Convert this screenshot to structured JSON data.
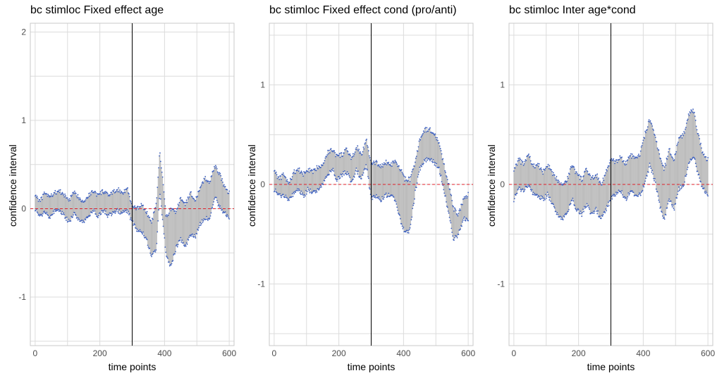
{
  "chart_data": [
    {
      "type": "line",
      "title": "bc stimloc Fixed effect age",
      "xlabel": "time points",
      "ylabel": "confidence interval",
      "xlim": [
        0,
        600
      ],
      "ylim": [
        -1.55,
        2.1
      ],
      "x_ticks": [
        0,
        200,
        400,
        600
      ],
      "y_ticks": [
        -1,
        0,
        1,
        2
      ],
      "grid": true,
      "reference_lines": {
        "vertical_x": 300,
        "horizontal_y": 0
      },
      "colors": {
        "interval": "#3b5fc0",
        "band": "#b4b4b4",
        "zero_line": "#e0202a",
        "vline": "#000000"
      },
      "series": [
        {
          "role": "upper",
          "x": [
            0,
            15,
            30,
            45,
            60,
            75,
            90,
            105,
            120,
            135,
            150,
            165,
            180,
            195,
            210,
            225,
            240,
            255,
            270,
            285,
            300,
            315,
            330,
            345,
            360,
            375,
            385,
            395,
            405,
            420,
            435,
            450,
            465,
            480,
            495,
            510,
            525,
            540,
            555,
            570,
            585,
            600
          ],
          "values": [
            0.16,
            0.08,
            0.18,
            0.13,
            0.18,
            0.2,
            0.15,
            0.1,
            0.18,
            0.13,
            0.08,
            0.15,
            0.2,
            0.15,
            0.2,
            0.15,
            0.18,
            0.22,
            0.18,
            0.23,
            0.02,
            0.0,
            0.05,
            -0.05,
            -0.15,
            0.05,
            0.65,
            0.3,
            -0.1,
            0.0,
            -0.05,
            0.12,
            0.05,
            0.18,
            0.1,
            0.22,
            0.35,
            0.3,
            0.48,
            0.4,
            0.25,
            0.18
          ]
        },
        {
          "role": "lower",
          "x": [
            0,
            15,
            30,
            45,
            60,
            75,
            90,
            105,
            120,
            135,
            150,
            165,
            180,
            195,
            210,
            225,
            240,
            255,
            270,
            285,
            300,
            315,
            330,
            345,
            360,
            375,
            385,
            395,
            405,
            420,
            435,
            450,
            465,
            480,
            495,
            510,
            525,
            540,
            555,
            570,
            585,
            600
          ],
          "values": [
            0.0,
            -0.1,
            -0.02,
            -0.1,
            -0.03,
            -0.02,
            -0.08,
            -0.15,
            -0.05,
            -0.12,
            -0.15,
            -0.08,
            -0.02,
            -0.08,
            -0.02,
            -0.08,
            -0.05,
            -0.02,
            -0.05,
            -0.02,
            -0.15,
            -0.25,
            -0.25,
            -0.35,
            -0.55,
            -0.45,
            0.2,
            -0.15,
            -0.55,
            -0.65,
            -0.45,
            -0.35,
            -0.42,
            -0.3,
            -0.32,
            -0.18,
            -0.1,
            -0.12,
            0.15,
            0.02,
            -0.05,
            -0.1
          ]
        }
      ]
    },
    {
      "type": "line",
      "title": "bc stimloc Fixed effect cond (pro/anti)",
      "xlabel": "time points",
      "ylabel": "confidence interval",
      "xlim": [
        0,
        600
      ],
      "ylim": [
        -1.62,
        1.62
      ],
      "x_ticks": [
        0,
        200,
        400,
        600
      ],
      "y_ticks": [
        -1,
        0,
        1
      ],
      "grid": true,
      "reference_lines": {
        "vertical_x": 300,
        "horizontal_y": 0
      },
      "colors": {
        "interval": "#3b5fc0",
        "band": "#b4b4b4",
        "zero_line": "#e0202a",
        "vline": "#000000"
      },
      "series": [
        {
          "role": "upper",
          "x": [
            0,
            15,
            30,
            45,
            60,
            75,
            90,
            105,
            120,
            135,
            150,
            165,
            180,
            195,
            210,
            225,
            240,
            255,
            270,
            285,
            300,
            315,
            330,
            345,
            360,
            375,
            390,
            405,
            420,
            435,
            450,
            465,
            480,
            495,
            510,
            525,
            540,
            555,
            570,
            585,
            600
          ],
          "values": [
            0.15,
            0.05,
            0.1,
            0.0,
            0.12,
            0.15,
            0.1,
            0.15,
            0.12,
            0.18,
            0.2,
            0.32,
            0.35,
            0.28,
            0.3,
            0.35,
            0.25,
            0.38,
            0.3,
            0.45,
            0.2,
            0.22,
            0.18,
            0.22,
            0.2,
            0.22,
            0.15,
            0.05,
            0.05,
            0.2,
            0.45,
            0.55,
            0.55,
            0.52,
            0.4,
            0.2,
            0.0,
            -0.25,
            -0.3,
            -0.15,
            -0.1
          ]
        },
        {
          "role": "lower",
          "x": [
            0,
            15,
            30,
            45,
            60,
            75,
            90,
            105,
            120,
            135,
            150,
            165,
            180,
            195,
            210,
            225,
            240,
            255,
            270,
            285,
            300,
            315,
            330,
            345,
            360,
            375,
            390,
            405,
            420,
            435,
            450,
            465,
            480,
            495,
            510,
            525,
            540,
            555,
            570,
            585,
            600
          ],
          "values": [
            -0.05,
            -0.12,
            -0.1,
            -0.15,
            -0.1,
            -0.05,
            -0.12,
            -0.05,
            -0.08,
            -0.05,
            0.0,
            0.1,
            0.15,
            0.05,
            0.1,
            0.12,
            0.02,
            0.15,
            0.05,
            0.2,
            -0.15,
            -0.12,
            -0.15,
            -0.1,
            -0.12,
            -0.15,
            -0.35,
            -0.5,
            -0.45,
            -0.1,
            0.15,
            0.25,
            0.25,
            0.22,
            0.15,
            -0.05,
            -0.3,
            -0.55,
            -0.5,
            -0.35,
            -0.35
          ]
        }
      ]
    },
    {
      "type": "line",
      "title": "bc stimloc Inter age*cond",
      "xlabel": "time points",
      "ylabel": "confidence interval",
      "xlim": [
        0,
        600
      ],
      "ylim": [
        -1.62,
        1.62
      ],
      "x_ticks": [
        0,
        200,
        400,
        600
      ],
      "y_ticks": [
        -1,
        0,
        1
      ],
      "grid": true,
      "reference_lines": {
        "vertical_x": 300,
        "horizontal_y": 0
      },
      "colors": {
        "interval": "#3b5fc0",
        "band": "#b4b4b4",
        "zero_line": "#e0202a",
        "vline": "#000000"
      },
      "series": [
        {
          "role": "upper",
          "x": [
            0,
            15,
            30,
            45,
            60,
            75,
            90,
            105,
            120,
            135,
            150,
            165,
            180,
            195,
            210,
            225,
            240,
            255,
            270,
            285,
            300,
            315,
            330,
            345,
            360,
            375,
            390,
            405,
            420,
            435,
            450,
            465,
            480,
            495,
            510,
            525,
            540,
            555,
            570,
            585,
            600
          ],
          "values": [
            0.15,
            0.25,
            0.2,
            0.3,
            0.18,
            0.2,
            0.12,
            0.2,
            0.1,
            0.05,
            0.0,
            0.05,
            0.2,
            0.1,
            0.05,
            0.15,
            0.05,
            0.1,
            0.0,
            0.12,
            0.25,
            0.22,
            0.28,
            0.2,
            0.3,
            0.25,
            0.3,
            0.5,
            0.65,
            0.5,
            0.3,
            0.15,
            0.35,
            0.25,
            0.45,
            0.5,
            0.7,
            0.75,
            0.5,
            0.3,
            0.25
          ]
        },
        {
          "role": "lower",
          "x": [
            0,
            15,
            30,
            45,
            60,
            75,
            90,
            105,
            120,
            135,
            150,
            165,
            180,
            195,
            210,
            225,
            240,
            255,
            270,
            285,
            300,
            315,
            330,
            345,
            360,
            375,
            390,
            405,
            420,
            435,
            450,
            465,
            480,
            495,
            510,
            525,
            540,
            555,
            570,
            585,
            600
          ],
          "values": [
            -0.15,
            -0.05,
            -0.05,
            0.0,
            -0.1,
            -0.12,
            -0.15,
            -0.1,
            -0.2,
            -0.3,
            -0.35,
            -0.28,
            -0.15,
            -0.25,
            -0.3,
            -0.2,
            -0.3,
            -0.25,
            -0.35,
            -0.25,
            -0.15,
            -0.1,
            -0.05,
            -0.15,
            -0.08,
            -0.1,
            -0.1,
            0.0,
            0.2,
            0.05,
            -0.2,
            -0.35,
            -0.15,
            -0.25,
            -0.05,
            0.0,
            0.2,
            0.3,
            0.1,
            -0.05,
            -0.1
          ]
        }
      ]
    }
  ]
}
